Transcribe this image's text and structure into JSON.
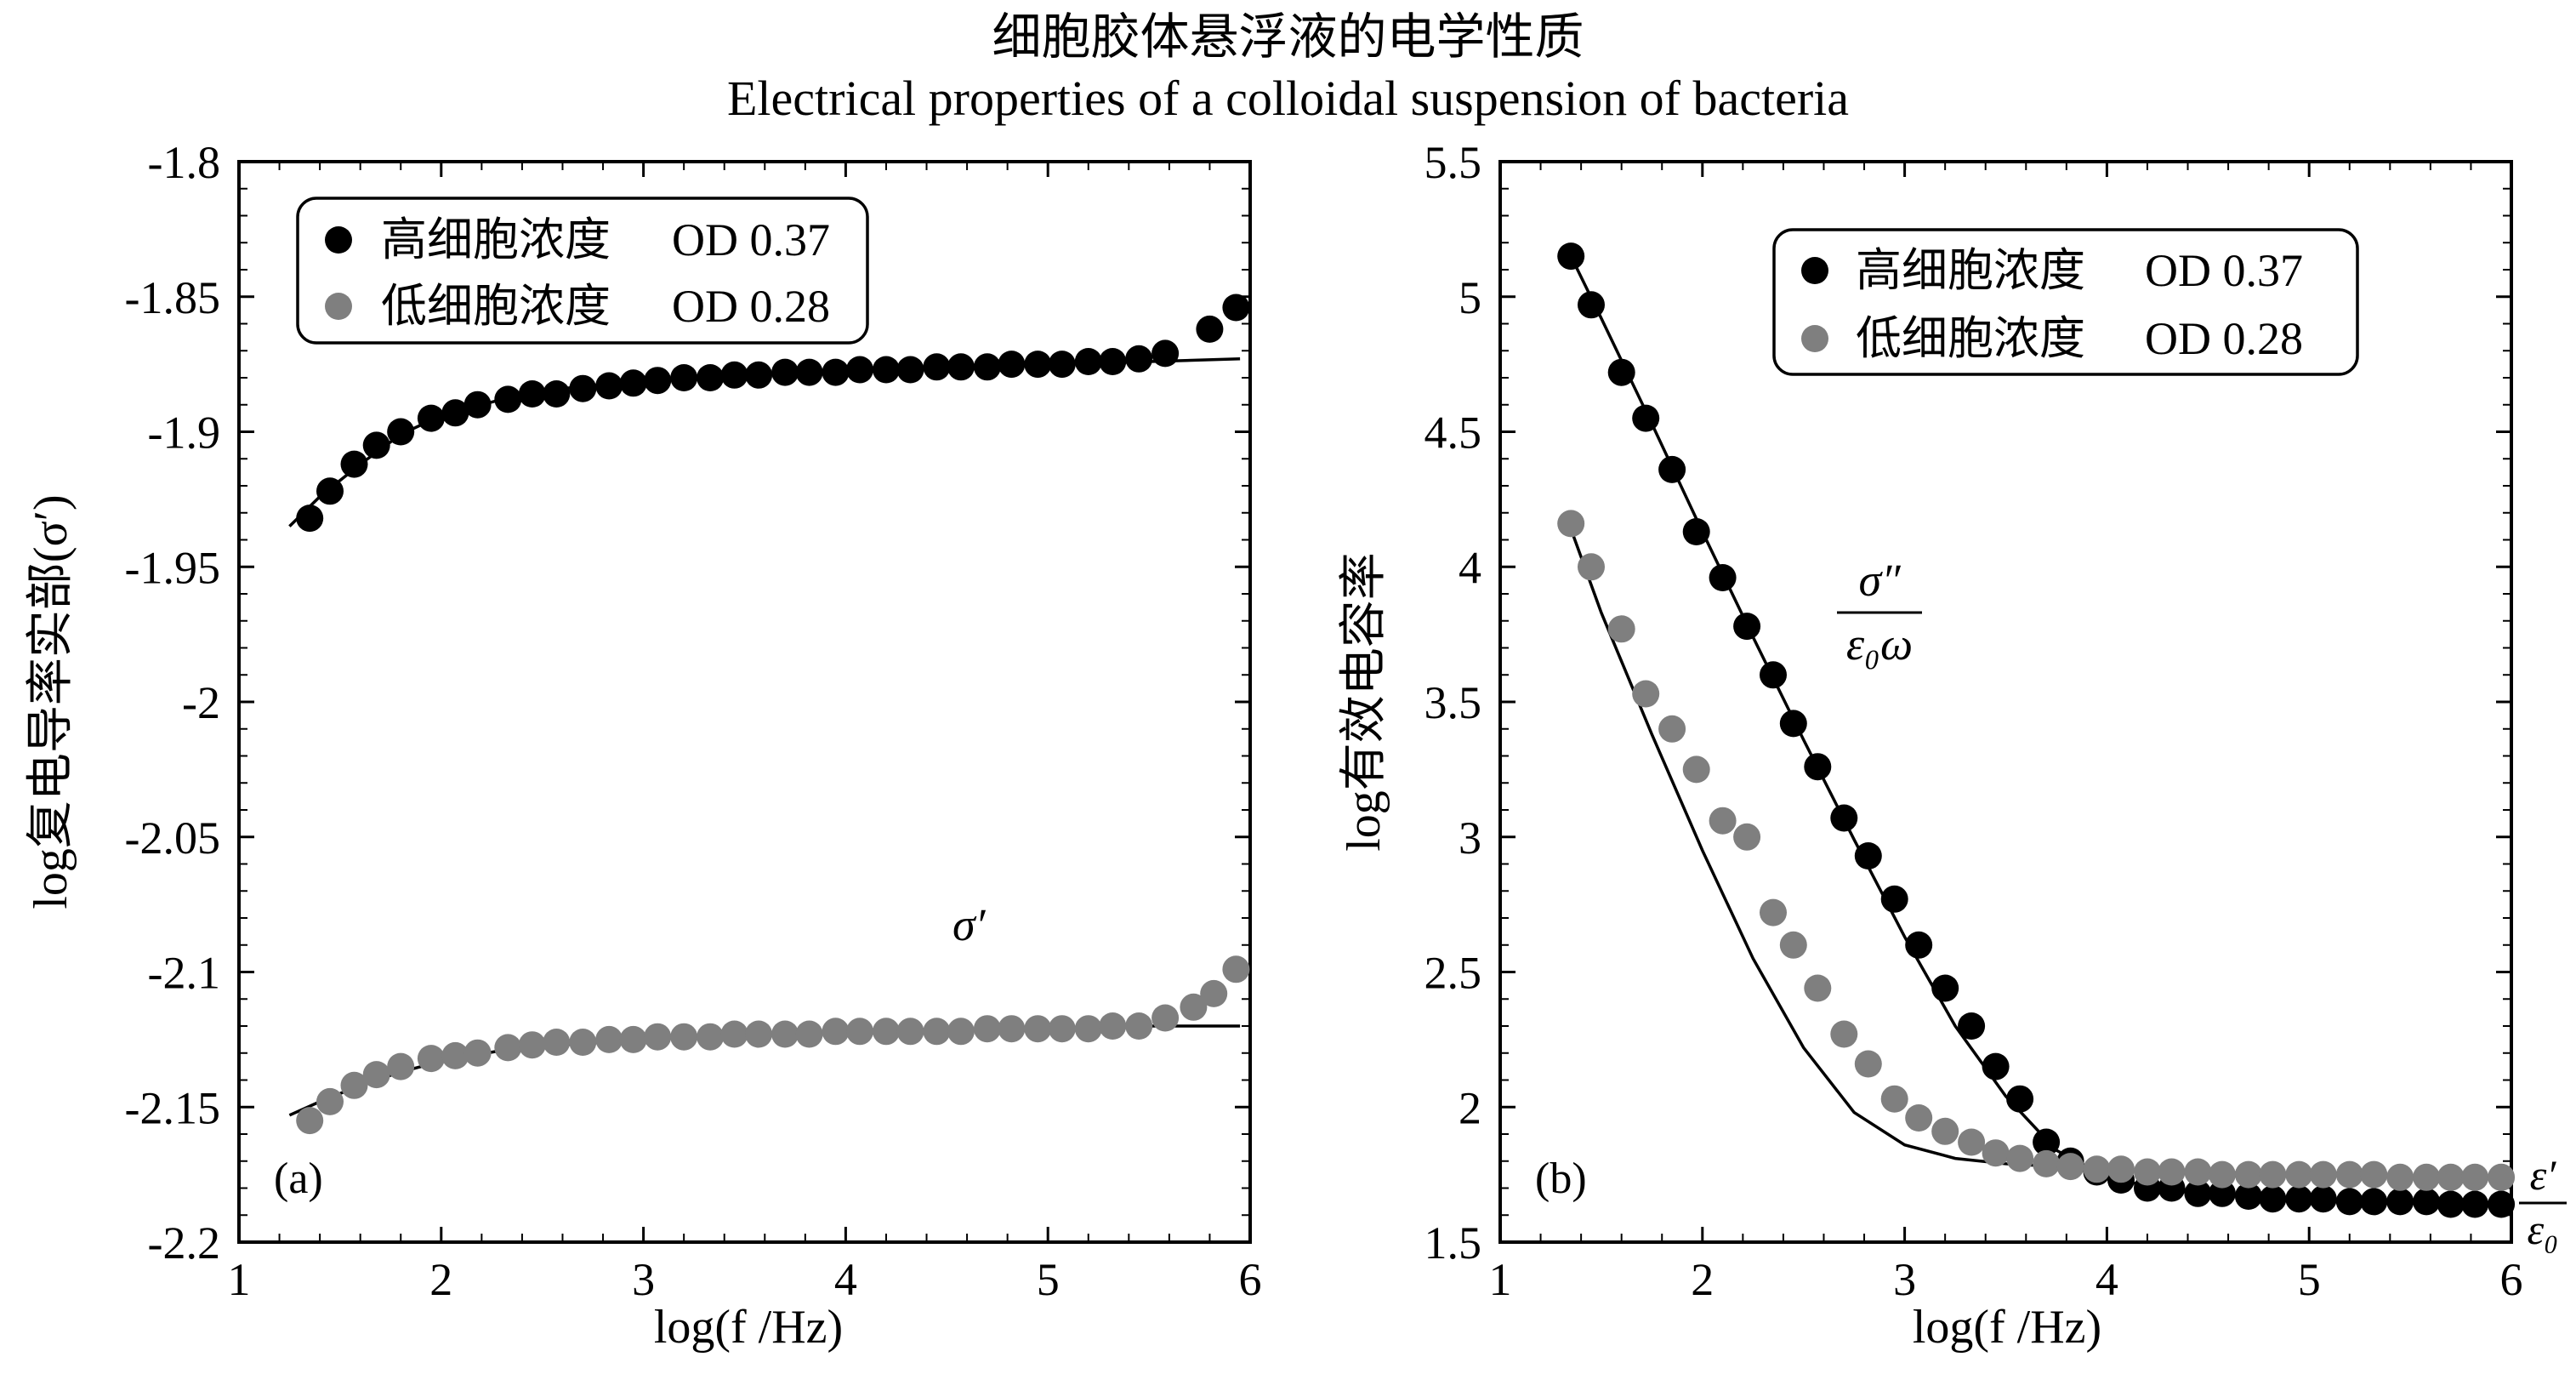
{
  "title": {
    "zh": "细胞胶体悬浮液的电学性质",
    "en": "Electrical properties of a colloidal suspension of bacteria"
  },
  "colors": {
    "high": "#000000",
    "low": "#7f7f7f",
    "fit": "#000000"
  },
  "chart_data": [
    {
      "id": "a",
      "type": "scatter",
      "panel_label": "(a)",
      "xlabel": "log(f /Hz)",
      "ylabel": "log复电导率实部(σ′)",
      "xlim": [
        1,
        6
      ],
      "ylim": [
        -2.2,
        -1.8
      ],
      "xticks": [
        "1",
        "2",
        "3",
        "4",
        "5",
        "6"
      ],
      "yticks": [
        "-1.8",
        "-1.85",
        "-1.9",
        "-1.95",
        "-2",
        "-2.05",
        "-2.1",
        "-2.15",
        "-2.2"
      ],
      "annotation": "σ′",
      "legend_position": "top-left",
      "series": [
        {
          "name": "高细胞浓度",
          "value_label": "OD 0.37",
          "color": "#000000",
          "points": [
            [
              1.35,
              -1.932
            ],
            [
              1.45,
              -1.922
            ],
            [
              1.57,
              -1.912
            ],
            [
              1.68,
              -1.905
            ],
            [
              1.8,
              -1.9
            ],
            [
              1.95,
              -1.895
            ],
            [
              2.07,
              -1.893
            ],
            [
              2.18,
              -1.89
            ],
            [
              2.33,
              -1.888
            ],
            [
              2.45,
              -1.886
            ],
            [
              2.57,
              -1.886
            ],
            [
              2.7,
              -1.884
            ],
            [
              2.83,
              -1.883
            ],
            [
              2.95,
              -1.882
            ],
            [
              3.07,
              -1.881
            ],
            [
              3.2,
              -1.88
            ],
            [
              3.33,
              -1.88
            ],
            [
              3.45,
              -1.879
            ],
            [
              3.57,
              -1.879
            ],
            [
              3.7,
              -1.878
            ],
            [
              3.82,
              -1.878
            ],
            [
              3.95,
              -1.878
            ],
            [
              4.07,
              -1.877
            ],
            [
              4.2,
              -1.877
            ],
            [
              4.32,
              -1.877
            ],
            [
              4.45,
              -1.876
            ],
            [
              4.57,
              -1.876
            ],
            [
              4.7,
              -1.876
            ],
            [
              4.82,
              -1.875
            ],
            [
              4.95,
              -1.875
            ],
            [
              5.07,
              -1.875
            ],
            [
              5.2,
              -1.874
            ],
            [
              5.32,
              -1.874
            ],
            [
              5.45,
              -1.873
            ],
            [
              5.58,
              -1.871
            ],
            [
              5.8,
              -1.862
            ],
            [
              5.93,
              -1.854
            ]
          ],
          "fit": [
            [
              1.25,
              -1.935
            ],
            [
              1.4,
              -1.924
            ],
            [
              1.6,
              -1.912
            ],
            [
              1.8,
              -1.901
            ],
            [
              2.0,
              -1.894
            ],
            [
              2.3,
              -1.888
            ],
            [
              2.6,
              -1.884
            ],
            [
              3.0,
              -1.881
            ],
            [
              3.5,
              -1.879
            ],
            [
              4.0,
              -1.877
            ],
            [
              4.5,
              -1.876
            ],
            [
              5.0,
              -1.875
            ],
            [
              5.5,
              -1.874
            ],
            [
              5.95,
              -1.873
            ]
          ]
        },
        {
          "name": "低细胞浓度",
          "value_label": "OD 0.28",
          "color": "#7f7f7f",
          "points": [
            [
              1.35,
              -2.155
            ],
            [
              1.45,
              -2.148
            ],
            [
              1.57,
              -2.142
            ],
            [
              1.68,
              -2.138
            ],
            [
              1.8,
              -2.135
            ],
            [
              1.95,
              -2.132
            ],
            [
              2.07,
              -2.131
            ],
            [
              2.18,
              -2.13
            ],
            [
              2.33,
              -2.128
            ],
            [
              2.45,
              -2.127
            ],
            [
              2.57,
              -2.126
            ],
            [
              2.7,
              -2.126
            ],
            [
              2.83,
              -2.125
            ],
            [
              2.95,
              -2.125
            ],
            [
              3.07,
              -2.124
            ],
            [
              3.2,
              -2.124
            ],
            [
              3.33,
              -2.124
            ],
            [
              3.45,
              -2.123
            ],
            [
              3.57,
              -2.123
            ],
            [
              3.7,
              -2.123
            ],
            [
              3.82,
              -2.123
            ],
            [
              3.95,
              -2.122
            ],
            [
              4.07,
              -2.122
            ],
            [
              4.2,
              -2.122
            ],
            [
              4.32,
              -2.122
            ],
            [
              4.45,
              -2.122
            ],
            [
              4.57,
              -2.122
            ],
            [
              4.7,
              -2.121
            ],
            [
              4.82,
              -2.121
            ],
            [
              4.95,
              -2.121
            ],
            [
              5.07,
              -2.121
            ],
            [
              5.2,
              -2.121
            ],
            [
              5.32,
              -2.12
            ],
            [
              5.45,
              -2.12
            ],
            [
              5.58,
              -2.117
            ],
            [
              5.72,
              -2.113
            ],
            [
              5.82,
              -2.108
            ],
            [
              5.93,
              -2.099
            ]
          ],
          "fit": [
            [
              1.25,
              -2.153
            ],
            [
              1.4,
              -2.148
            ],
            [
              1.6,
              -2.142
            ],
            [
              1.8,
              -2.137
            ],
            [
              2.0,
              -2.133
            ],
            [
              2.3,
              -2.129
            ],
            [
              2.6,
              -2.127
            ],
            [
              3.0,
              -2.125
            ],
            [
              3.5,
              -2.123
            ],
            [
              4.0,
              -2.122
            ],
            [
              4.5,
              -2.121
            ],
            [
              5.0,
              -2.121
            ],
            [
              5.5,
              -2.12
            ],
            [
              5.95,
              -2.12
            ]
          ]
        }
      ]
    },
    {
      "id": "b",
      "type": "scatter",
      "panel_label": "(b)",
      "xlabel": "log(f /Hz)",
      "ylabel": "log有效电容率",
      "xlim": [
        1,
        6
      ],
      "ylim": [
        1.5,
        5.5
      ],
      "xticks": [
        "1",
        "2",
        "3",
        "4",
        "5",
        "6"
      ],
      "yticks": [
        "5.5",
        "5",
        "4.5",
        "4",
        "3.5",
        "3",
        "2.5",
        "2",
        "1.5"
      ],
      "annotation_fraction": {
        "numerator": "σ″",
        "denominator": "ε₀ω"
      },
      "annotation_edge": {
        "numerator": "ε′",
        "denominator": "ε₀"
      },
      "legend_position": "top-right",
      "series": [
        {
          "name": "高细胞浓度",
          "value_label": "OD 0.37",
          "color": "#000000",
          "points": [
            [
              1.35,
              5.15
            ],
            [
              1.45,
              4.97
            ],
            [
              1.6,
              4.72
            ],
            [
              1.72,
              4.55
            ],
            [
              1.85,
              4.36
            ],
            [
              1.97,
              4.13
            ],
            [
              2.1,
              3.96
            ],
            [
              2.22,
              3.78
            ],
            [
              2.35,
              3.6
            ],
            [
              2.45,
              3.42
            ],
            [
              2.57,
              3.26
            ],
            [
              2.7,
              3.07
            ],
            [
              2.82,
              2.93
            ],
            [
              2.95,
              2.77
            ],
            [
              3.07,
              2.6
            ],
            [
              3.2,
              2.44
            ],
            [
              3.33,
              2.3
            ],
            [
              3.45,
              2.15
            ],
            [
              3.57,
              2.03
            ],
            [
              3.7,
              1.87
            ],
            [
              3.82,
              1.8
            ],
            [
              3.95,
              1.76
            ],
            [
              4.07,
              1.73
            ],
            [
              4.2,
              1.7
            ],
            [
              4.32,
              1.7
            ],
            [
              4.45,
              1.68
            ],
            [
              4.57,
              1.68
            ],
            [
              4.7,
              1.67
            ],
            [
              4.82,
              1.66
            ],
            [
              4.95,
              1.66
            ],
            [
              5.07,
              1.66
            ],
            [
              5.2,
              1.65
            ],
            [
              5.32,
              1.65
            ],
            [
              5.45,
              1.65
            ],
            [
              5.58,
              1.65
            ],
            [
              5.7,
              1.64
            ],
            [
              5.82,
              1.64
            ],
            [
              5.95,
              1.64
            ]
          ],
          "fit": [
            [
              1.35,
              5.15
            ],
            [
              1.5,
              4.92
            ],
            [
              1.75,
              4.53
            ],
            [
              2.0,
              4.13
            ],
            [
              2.25,
              3.74
            ],
            [
              2.5,
              3.36
            ],
            [
              2.75,
              2.99
            ],
            [
              3.0,
              2.63
            ],
            [
              3.25,
              2.3
            ],
            [
              3.5,
              2.04
            ],
            [
              3.75,
              1.84
            ],
            [
              4.0,
              1.74
            ],
            [
              4.25,
              1.7
            ],
            [
              4.5,
              1.68
            ],
            [
              5.0,
              1.66
            ],
            [
              5.5,
              1.65
            ],
            [
              6.0,
              1.64
            ]
          ]
        },
        {
          "name": "低细胞浓度",
          "value_label": "OD 0.28",
          "color": "#7f7f7f",
          "points": [
            [
              1.35,
              4.16
            ],
            [
              1.45,
              4.0
            ],
            [
              1.6,
              3.77
            ],
            [
              1.72,
              3.53
            ],
            [
              1.85,
              3.4
            ],
            [
              1.97,
              3.25
            ],
            [
              2.1,
              3.06
            ],
            [
              2.22,
              3.0
            ],
            [
              2.35,
              2.72
            ],
            [
              2.45,
              2.6
            ],
            [
              2.57,
              2.44
            ],
            [
              2.7,
              2.27
            ],
            [
              2.82,
              2.16
            ],
            [
              2.95,
              2.03
            ],
            [
              3.07,
              1.96
            ],
            [
              3.2,
              1.91
            ],
            [
              3.33,
              1.87
            ],
            [
              3.45,
              1.83
            ],
            [
              3.57,
              1.81
            ],
            [
              3.7,
              1.79
            ],
            [
              3.82,
              1.78
            ],
            [
              3.95,
              1.77
            ],
            [
              4.07,
              1.77
            ],
            [
              4.2,
              1.76
            ],
            [
              4.32,
              1.76
            ],
            [
              4.45,
              1.76
            ],
            [
              4.57,
              1.75
            ],
            [
              4.7,
              1.75
            ],
            [
              4.82,
              1.75
            ],
            [
              4.95,
              1.75
            ],
            [
              5.07,
              1.75
            ],
            [
              5.2,
              1.75
            ],
            [
              5.32,
              1.75
            ],
            [
              5.45,
              1.74
            ],
            [
              5.58,
              1.74
            ],
            [
              5.7,
              1.74
            ],
            [
              5.82,
              1.74
            ],
            [
              5.95,
              1.74
            ]
          ],
          "fit": [
            [
              1.35,
              4.14
            ],
            [
              1.5,
              3.83
            ],
            [
              1.75,
              3.38
            ],
            [
              2.0,
              2.95
            ],
            [
              2.25,
              2.55
            ],
            [
              2.5,
              2.22
            ],
            [
              2.75,
              1.98
            ],
            [
              3.0,
              1.86
            ],
            [
              3.25,
              1.81
            ],
            [
              3.5,
              1.79
            ],
            [
              3.75,
              1.78
            ],
            [
              4.0,
              1.77
            ],
            [
              4.5,
              1.76
            ],
            [
              5.0,
              1.75
            ],
            [
              5.5,
              1.74
            ],
            [
              6.0,
              1.74
            ]
          ]
        }
      ]
    }
  ]
}
